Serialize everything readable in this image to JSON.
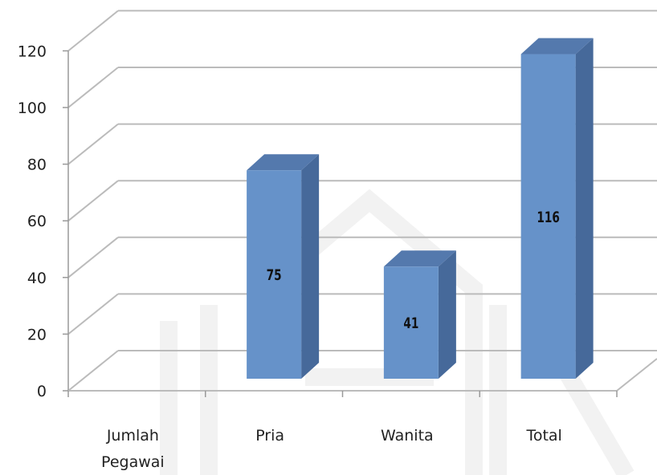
{
  "chart_data": {
    "type": "bar",
    "style": "3d-column",
    "categories": [
      "Jumlah Pegawai",
      "Pria",
      "Wanita",
      "Total"
    ],
    "category_lines": [
      [
        "Jumlah",
        "Pegawai"
      ],
      [
        "Pria"
      ],
      [
        "Wanita"
      ],
      [
        "Total"
      ]
    ],
    "values": [
      null,
      75,
      41,
      116
    ],
    "data_labels": [
      "",
      "75",
      "41",
      "116"
    ],
    "ylim": [
      0,
      120
    ],
    "yticks": [
      "0",
      "20",
      "40",
      "60",
      "80",
      "100",
      "120"
    ],
    "grid": true,
    "legend": "none",
    "colors": {
      "front": "#6692c9",
      "side": "#46699a",
      "top": "#5479ad",
      "grid": "#bbbbbb",
      "axis": "#999999"
    }
  }
}
